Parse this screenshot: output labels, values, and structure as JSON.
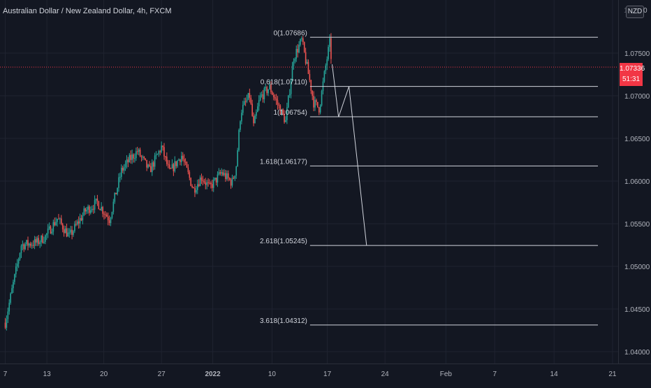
{
  "header": {
    "title": "Australian Dollar / New Zealand Dollar, 4h, FXCM",
    "currency": "NZD",
    "corner": "0",
    "edge": "1"
  },
  "price_tag": {
    "price": "1.07336",
    "countdown": "51:31"
  },
  "colors": {
    "background": "#131722",
    "grid": "#1f2330",
    "up": "#26a69a",
    "down": "#ef5350",
    "fib": "#d1d4dc",
    "last_price_line": "#f23645",
    "axis_text": "#b2b5be"
  },
  "chart_data": {
    "type": "candlestick",
    "title": "Australian Dollar / New Zealand Dollar, 4h, FXCM",
    "xlabel": "",
    "ylabel": "",
    "ylim": [
      1.0366,
      1.0806
    ],
    "x_ticks": [
      "7",
      "13",
      "20",
      "27",
      "2022",
      "10",
      "17",
      "24",
      "Feb",
      "7",
      "14",
      "21"
    ],
    "y_ticks": [
      "1.07500",
      "1.07000",
      "1.06500",
      "1.06000",
      "1.05500",
      "1.05000",
      "1.04500",
      "1.04000"
    ],
    "grid": true,
    "last_price": 1.07336,
    "fib_levels": [
      {
        "label": "0(1.07686)",
        "value": 1.07686
      },
      {
        "label": "0.618(1.07110)",
        "value": 1.0711
      },
      {
        "label": "1(1.06754)",
        "value": 1.06754
      },
      {
        "label": "1.618(1.06177)",
        "value": 1.06177
      },
      {
        "label": "2.618(1.05245)",
        "value": 1.05245
      },
      {
        "label": "3.618(1.04312)",
        "value": 1.04312
      }
    ],
    "projection_path": [
      {
        "day": 40.8,
        "value": 1.0737
      },
      {
        "day": 41.6,
        "value": 1.0675
      },
      {
        "day": 42.9,
        "value": 1.0711
      },
      {
        "day": 45.1,
        "value": 1.05245
      }
    ],
    "price_path": [
      {
        "day": 0.0,
        "value": 1.0434
      },
      {
        "day": 2.0,
        "value": 1.0525
      },
      {
        "day": 4.0,
        "value": 1.0528
      },
      {
        "day": 5.0,
        "value": 1.0535
      },
      {
        "day": 6.5,
        "value": 1.0556
      },
      {
        "day": 8.0,
        "value": 1.0535
      },
      {
        "day": 10.0,
        "value": 1.0565
      },
      {
        "day": 11.5,
        "value": 1.0575
      },
      {
        "day": 13.0,
        "value": 1.0555
      },
      {
        "day": 14.5,
        "value": 1.0612
      },
      {
        "day": 15.5,
        "value": 1.0625
      },
      {
        "day": 16.5,
        "value": 1.0635
      },
      {
        "day": 18.0,
        "value": 1.0612
      },
      {
        "day": 19.5,
        "value": 1.064
      },
      {
        "day": 20.5,
        "value": 1.061
      },
      {
        "day": 22.0,
        "value": 1.063
      },
      {
        "day": 23.5,
        "value": 1.059
      },
      {
        "day": 24.5,
        "value": 1.0605
      },
      {
        "day": 25.5,
        "value": 1.0592
      },
      {
        "day": 27.0,
        "value": 1.061
      },
      {
        "day": 28.3,
        "value": 1.0598
      },
      {
        "day": 28.8,
        "value": 1.0615
      },
      {
        "day": 29.4,
        "value": 1.0682
      },
      {
        "day": 30.5,
        "value": 1.07
      },
      {
        "day": 31.0,
        "value": 1.0664
      },
      {
        "day": 31.8,
        "value": 1.0698
      },
      {
        "day": 33.0,
        "value": 1.071
      },
      {
        "day": 34.0,
        "value": 1.069
      },
      {
        "day": 35.0,
        "value": 1.067
      },
      {
        "day": 36.0,
        "value": 1.0745
      },
      {
        "day": 37.0,
        "value": 1.0765
      },
      {
        "day": 38.0,
        "value": 1.0718
      },
      {
        "day": 38.5,
        "value": 1.0692
      },
      {
        "day": 39.2,
        "value": 1.0685
      },
      {
        "day": 40.0,
        "value": 1.0735
      },
      {
        "day": 40.5,
        "value": 1.0762
      },
      {
        "day": 40.8,
        "value": 1.07336
      }
    ]
  }
}
